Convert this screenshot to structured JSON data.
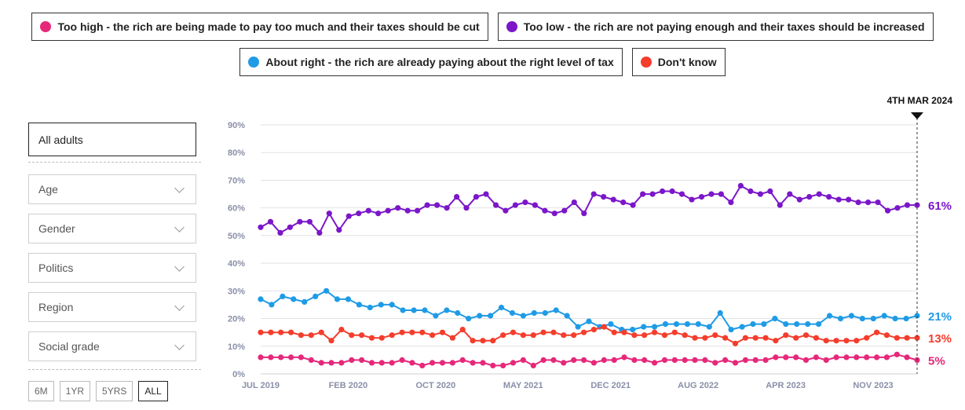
{
  "legend": [
    {
      "label": "Too high - the rich are being made to pay too much and their taxes should be cut",
      "color": "#e6287a"
    },
    {
      "label": "Too low - the rich are not paying enough and their taxes should be increased",
      "color": "#7b16c9"
    },
    {
      "label": "About right - the rich are already paying about the right level of tax",
      "color": "#1f9be6"
    },
    {
      "label": "Don't know",
      "color": "#f43d2c"
    }
  ],
  "sidebar": {
    "selected": "All adults",
    "filters": [
      "Age",
      "Gender",
      "Politics",
      "Region",
      "Social grade"
    ]
  },
  "range_buttons": [
    "6M",
    "1YR",
    "5YRS",
    "ALL"
  ],
  "active_range": "ALL",
  "marker_label": "4TH MAR 2024",
  "chart_data": {
    "type": "line",
    "x_tick_labels": [
      "JUL 2019",
      "FEB 2020",
      "OCT 2020",
      "MAY 2021",
      "DEC 2021",
      "AUG 2022",
      "APR 2023",
      "NOV 2023"
    ],
    "y_tick_labels": [
      "0%",
      "10%",
      "20%",
      "30%",
      "40%",
      "50%",
      "60%",
      "70%",
      "80%",
      "90%"
    ],
    "ylim": [
      0,
      90
    ],
    "grid": true,
    "series": [
      {
        "name": "Too low - the rich are not paying enough and their taxes should be increased",
        "color": "#7b16c9",
        "end_label": "61%",
        "values": [
          53,
          55,
          51,
          53,
          55,
          55,
          51,
          58,
          52,
          57,
          58,
          59,
          58,
          59,
          60,
          59,
          59,
          61,
          61,
          60,
          64,
          60,
          64,
          65,
          61,
          59,
          61,
          62,
          61,
          59,
          58,
          59,
          62,
          58,
          65,
          64,
          63,
          62,
          61,
          65,
          65,
          66,
          66,
          65,
          63,
          64,
          65,
          65,
          62,
          68,
          66,
          65,
          66,
          61,
          65,
          63,
          64,
          65,
          64,
          63,
          63,
          62,
          62,
          62,
          59,
          60,
          61,
          61
        ]
      },
      {
        "name": "About right - the rich are already paying about the right level of tax",
        "color": "#1f9be6",
        "end_label": "21%",
        "values": [
          27,
          25,
          28,
          27,
          26,
          28,
          30,
          27,
          27,
          25,
          24,
          25,
          25,
          23,
          23,
          23,
          21,
          23,
          22,
          20,
          21,
          21,
          24,
          22,
          21,
          22,
          22,
          23,
          21,
          17,
          19,
          17,
          18,
          16,
          16,
          17,
          17,
          18,
          18,
          18,
          18,
          17,
          22,
          16,
          17,
          18,
          18,
          20,
          18,
          18,
          18,
          18,
          21,
          20,
          21,
          20,
          20,
          21,
          20,
          20,
          21
        ]
      },
      {
        "name": "Don't know",
        "color": "#f43d2c",
        "end_label": "13%",
        "values": [
          15,
          15,
          15,
          15,
          14,
          14,
          15,
          12,
          16,
          14,
          14,
          13,
          13,
          14,
          15,
          15,
          15,
          14,
          15,
          13,
          16,
          12,
          12,
          12,
          14,
          15,
          14,
          14,
          15,
          15,
          14,
          14,
          15,
          16,
          17,
          15,
          15,
          14,
          14,
          15,
          14,
          15,
          14,
          13,
          13,
          14,
          13,
          11,
          13,
          13,
          13,
          12,
          14,
          13,
          14,
          13,
          12,
          12,
          12,
          12,
          13,
          15,
          14,
          13,
          13,
          13
        ]
      },
      {
        "name": "Too high - the rich are being made to pay too much and their taxes should be cut",
        "color": "#e6287a",
        "end_label": "5%",
        "values": [
          6,
          6,
          6,
          6,
          6,
          5,
          4,
          4,
          4,
          5,
          5,
          4,
          4,
          4,
          5,
          4,
          3,
          4,
          4,
          4,
          5,
          4,
          4,
          3,
          3,
          4,
          5,
          3,
          5,
          5,
          4,
          5,
          5,
          4,
          5,
          5,
          6,
          5,
          5,
          4,
          5,
          5,
          5,
          5,
          5,
          4,
          5,
          4,
          5,
          5,
          5,
          6,
          6,
          6,
          5,
          6,
          5,
          6,
          6,
          6,
          6,
          6,
          6,
          7,
          6,
          5
        ]
      }
    ]
  }
}
